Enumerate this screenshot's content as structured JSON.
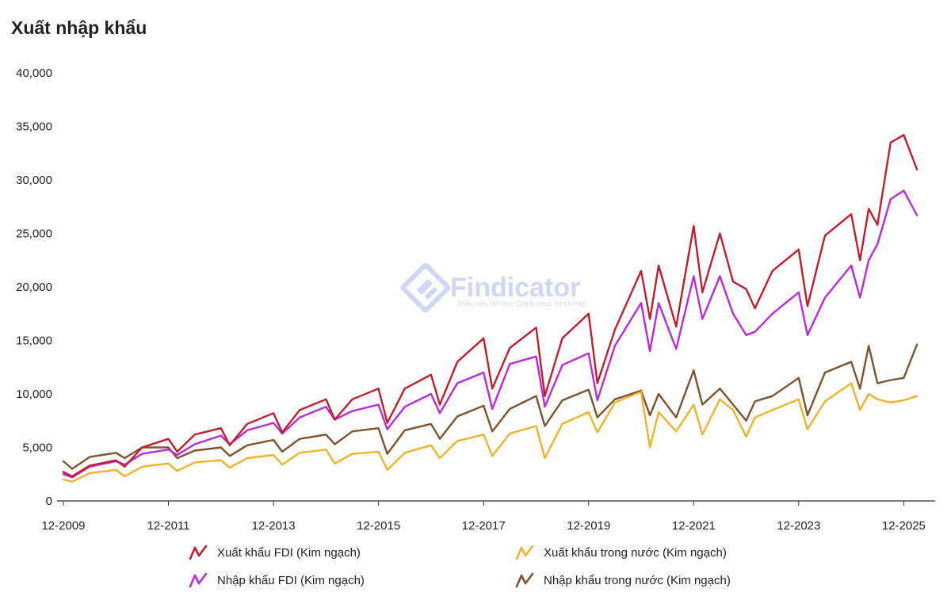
{
  "title": "Xuất nhập khẩu",
  "watermark": {
    "brand": "Findicator",
    "tagline": "Thấu hiểu dữ liệu, Chinh phục thị trường",
    "color": "#5b6ee1"
  },
  "chart_data": {
    "type": "line",
    "title": "Xuất nhập khẩu",
    "xlabel": "",
    "ylabel": "",
    "x_start": "12-2009",
    "x_end": "05-2026",
    "x_tick_labels": [
      "12-2009",
      "12-2011",
      "12-2013",
      "12-2015",
      "12-2017",
      "12-2019",
      "12-2021",
      "12-2023",
      "12-2025"
    ],
    "y_tick_labels": [
      "40,000",
      "35,000",
      "30,000",
      "25,000",
      "20,000",
      "15,000",
      "10,000",
      "5,000",
      "0"
    ],
    "ylim": [
      0,
      40000
    ],
    "grid": false,
    "legend_position": "bottom",
    "series": [
      {
        "name": "Xuất khẩu FDI (Kim ngạch)",
        "color": "#c01e2e",
        "values": [
          [
            "2009-12",
            2700
          ],
          [
            "2010-02",
            2300
          ],
          [
            "2010-06",
            3300
          ],
          [
            "2010-12",
            3800
          ],
          [
            "2011-02",
            3200
          ],
          [
            "2011-06",
            5000
          ],
          [
            "2011-12",
            5800
          ],
          [
            "2012-02",
            4600
          ],
          [
            "2012-06",
            6200
          ],
          [
            "2012-12",
            6800
          ],
          [
            "2013-02",
            5200
          ],
          [
            "2013-06",
            7200
          ],
          [
            "2013-12",
            8200
          ],
          [
            "2014-02",
            6400
          ],
          [
            "2014-06",
            8500
          ],
          [
            "2014-12",
            9500
          ],
          [
            "2015-02",
            7600
          ],
          [
            "2015-06",
            9500
          ],
          [
            "2015-12",
            10500
          ],
          [
            "2016-02",
            7300
          ],
          [
            "2016-06",
            10500
          ],
          [
            "2016-12",
            11800
          ],
          [
            "2017-02",
            9000
          ],
          [
            "2017-06",
            13000
          ],
          [
            "2017-12",
            15200
          ],
          [
            "2018-02",
            10500
          ],
          [
            "2018-06",
            14300
          ],
          [
            "2018-12",
            16200
          ],
          [
            "2019-02",
            9800
          ],
          [
            "2019-06",
            15200
          ],
          [
            "2019-12",
            17500
          ],
          [
            "2020-02",
            11000
          ],
          [
            "2020-06",
            16000
          ],
          [
            "2020-12",
            21500
          ],
          [
            "2021-02",
            17000
          ],
          [
            "2021-04",
            22000
          ],
          [
            "2021-08",
            16300
          ],
          [
            "2021-12",
            25700
          ],
          [
            "2022-02",
            19500
          ],
          [
            "2022-06",
            25000
          ],
          [
            "2022-09",
            20500
          ],
          [
            "2022-12",
            19800
          ],
          [
            "2023-02",
            18000
          ],
          [
            "2023-06",
            21500
          ],
          [
            "2023-12",
            23500
          ],
          [
            "2024-02",
            18200
          ],
          [
            "2024-06",
            24800
          ],
          [
            "2024-12",
            26800
          ],
          [
            "2025-02",
            22500
          ],
          [
            "2025-04",
            27300
          ],
          [
            "2025-06",
            25800
          ],
          [
            "2025-09",
            33500
          ],
          [
            "2025-12",
            34200
          ],
          [
            "2026-03",
            31000
          ]
        ]
      },
      {
        "name": "Nhập khẩu FDI (Kim ngạch)",
        "color": "#b92bd9",
        "values": [
          [
            "2009-12",
            2500
          ],
          [
            "2010-02",
            2200
          ],
          [
            "2010-06",
            3200
          ],
          [
            "2010-12",
            3700
          ],
          [
            "2011-02",
            3400
          ],
          [
            "2011-06",
            4400
          ],
          [
            "2011-12",
            4800
          ],
          [
            "2012-02",
            4300
          ],
          [
            "2012-06",
            5300
          ],
          [
            "2012-12",
            6100
          ],
          [
            "2013-02",
            5300
          ],
          [
            "2013-06",
            6600
          ],
          [
            "2013-12",
            7300
          ],
          [
            "2014-02",
            6300
          ],
          [
            "2014-06",
            7800
          ],
          [
            "2014-12",
            8800
          ],
          [
            "2015-02",
            7600
          ],
          [
            "2015-06",
            8400
          ],
          [
            "2015-12",
            9000
          ],
          [
            "2016-02",
            6700
          ],
          [
            "2016-06",
            8800
          ],
          [
            "2016-12",
            10000
          ],
          [
            "2017-02",
            8200
          ],
          [
            "2017-06",
            11000
          ],
          [
            "2017-12",
            12000
          ],
          [
            "2018-02",
            8600
          ],
          [
            "2018-06",
            12800
          ],
          [
            "2018-12",
            13500
          ],
          [
            "2019-02",
            8800
          ],
          [
            "2019-06",
            12700
          ],
          [
            "2019-12",
            13800
          ],
          [
            "2020-02",
            9400
          ],
          [
            "2020-06",
            14500
          ],
          [
            "2020-12",
            18500
          ],
          [
            "2021-02",
            14000
          ],
          [
            "2021-04",
            18500
          ],
          [
            "2021-08",
            14200
          ],
          [
            "2021-12",
            21000
          ],
          [
            "2022-02",
            17000
          ],
          [
            "2022-06",
            21000
          ],
          [
            "2022-09",
            17500
          ],
          [
            "2022-12",
            15500
          ],
          [
            "2023-02",
            15800
          ],
          [
            "2023-06",
            17500
          ],
          [
            "2023-12",
            19500
          ],
          [
            "2024-02",
            15500
          ],
          [
            "2024-06",
            19000
          ],
          [
            "2024-12",
            22000
          ],
          [
            "2025-02",
            19000
          ],
          [
            "2025-04",
            22500
          ],
          [
            "2025-06",
            24000
          ],
          [
            "2025-09",
            28200
          ],
          [
            "2025-12",
            29000
          ],
          [
            "2026-03",
            26700
          ]
        ]
      },
      {
        "name": "Xuất khẩu trong nước (Kim ngạch)",
        "color": "#efb32a",
        "values": [
          [
            "2009-12",
            2000
          ],
          [
            "2010-02",
            1800
          ],
          [
            "2010-06",
            2600
          ],
          [
            "2010-12",
            2900
          ],
          [
            "2011-02",
            2300
          ],
          [
            "2011-06",
            3200
          ],
          [
            "2011-12",
            3500
          ],
          [
            "2012-02",
            2800
          ],
          [
            "2012-06",
            3600
          ],
          [
            "2012-12",
            3800
          ],
          [
            "2013-02",
            3100
          ],
          [
            "2013-06",
            4000
          ],
          [
            "2013-12",
            4300
          ],
          [
            "2014-02",
            3400
          ],
          [
            "2014-06",
            4500
          ],
          [
            "2014-12",
            4800
          ],
          [
            "2015-02",
            3500
          ],
          [
            "2015-06",
            4400
          ],
          [
            "2015-12",
            4600
          ],
          [
            "2016-02",
            2900
          ],
          [
            "2016-06",
            4500
          ],
          [
            "2016-12",
            5200
          ],
          [
            "2017-02",
            4000
          ],
          [
            "2017-06",
            5600
          ],
          [
            "2017-12",
            6200
          ],
          [
            "2018-02",
            4200
          ],
          [
            "2018-06",
            6300
          ],
          [
            "2018-12",
            7000
          ],
          [
            "2019-02",
            4000
          ],
          [
            "2019-06",
            7200
          ],
          [
            "2019-12",
            8300
          ],
          [
            "2020-02",
            6400
          ],
          [
            "2020-06",
            9200
          ],
          [
            "2020-12",
            10200
          ],
          [
            "2021-02",
            5000
          ],
          [
            "2021-04",
            8300
          ],
          [
            "2021-08",
            6500
          ],
          [
            "2021-12",
            9000
          ],
          [
            "2022-02",
            6200
          ],
          [
            "2022-06",
            9500
          ],
          [
            "2022-09",
            8500
          ],
          [
            "2022-12",
            6000
          ],
          [
            "2023-02",
            7800
          ],
          [
            "2023-06",
            8500
          ],
          [
            "2023-12",
            9500
          ],
          [
            "2024-02",
            6700
          ],
          [
            "2024-06",
            9300
          ],
          [
            "2024-12",
            11000
          ],
          [
            "2025-02",
            8500
          ],
          [
            "2025-04",
            10000
          ],
          [
            "2025-06",
            9500
          ],
          [
            "2025-09",
            9200
          ],
          [
            "2025-12",
            9400
          ],
          [
            "2026-03",
            9800
          ]
        ]
      },
      {
        "name": "Nhập khẩu trong nước (Kim ngạch)",
        "color": "#7d5230",
        "values": [
          [
            "2009-12",
            3700
          ],
          [
            "2010-02",
            3000
          ],
          [
            "2010-06",
            4100
          ],
          [
            "2010-12",
            4500
          ],
          [
            "2011-02",
            4000
          ],
          [
            "2011-06",
            5000
          ],
          [
            "2011-12",
            5000
          ],
          [
            "2012-02",
            4000
          ],
          [
            "2012-06",
            4700
          ],
          [
            "2012-12",
            5000
          ],
          [
            "2013-02",
            4200
          ],
          [
            "2013-06",
            5200
          ],
          [
            "2013-12",
            5700
          ],
          [
            "2014-02",
            4600
          ],
          [
            "2014-06",
            5800
          ],
          [
            "2014-12",
            6200
          ],
          [
            "2015-02",
            5300
          ],
          [
            "2015-06",
            6500
          ],
          [
            "2015-12",
            6800
          ],
          [
            "2016-02",
            4400
          ],
          [
            "2016-06",
            6600
          ],
          [
            "2016-12",
            7200
          ],
          [
            "2017-02",
            5800
          ],
          [
            "2017-06",
            7900
          ],
          [
            "2017-12",
            8900
          ],
          [
            "2018-02",
            6500
          ],
          [
            "2018-06",
            8600
          ],
          [
            "2018-12",
            9800
          ],
          [
            "2019-02",
            7000
          ],
          [
            "2019-06",
            9400
          ],
          [
            "2019-12",
            10400
          ],
          [
            "2020-02",
            7800
          ],
          [
            "2020-06",
            9500
          ],
          [
            "2020-12",
            10300
          ],
          [
            "2021-02",
            8000
          ],
          [
            "2021-04",
            10000
          ],
          [
            "2021-08",
            7800
          ],
          [
            "2021-12",
            12200
          ],
          [
            "2022-02",
            9000
          ],
          [
            "2022-06",
            10500
          ],
          [
            "2022-09",
            9000
          ],
          [
            "2022-12",
            7500
          ],
          [
            "2023-02",
            9300
          ],
          [
            "2023-06",
            9800
          ],
          [
            "2023-12",
            11500
          ],
          [
            "2024-02",
            8000
          ],
          [
            "2024-06",
            12000
          ],
          [
            "2024-12",
            13000
          ],
          [
            "2025-02",
            10500
          ],
          [
            "2025-04",
            14500
          ],
          [
            "2025-06",
            11000
          ],
          [
            "2025-09",
            11300
          ],
          [
            "2025-12",
            11500
          ],
          [
            "2026-03",
            14600
          ]
        ]
      }
    ]
  }
}
